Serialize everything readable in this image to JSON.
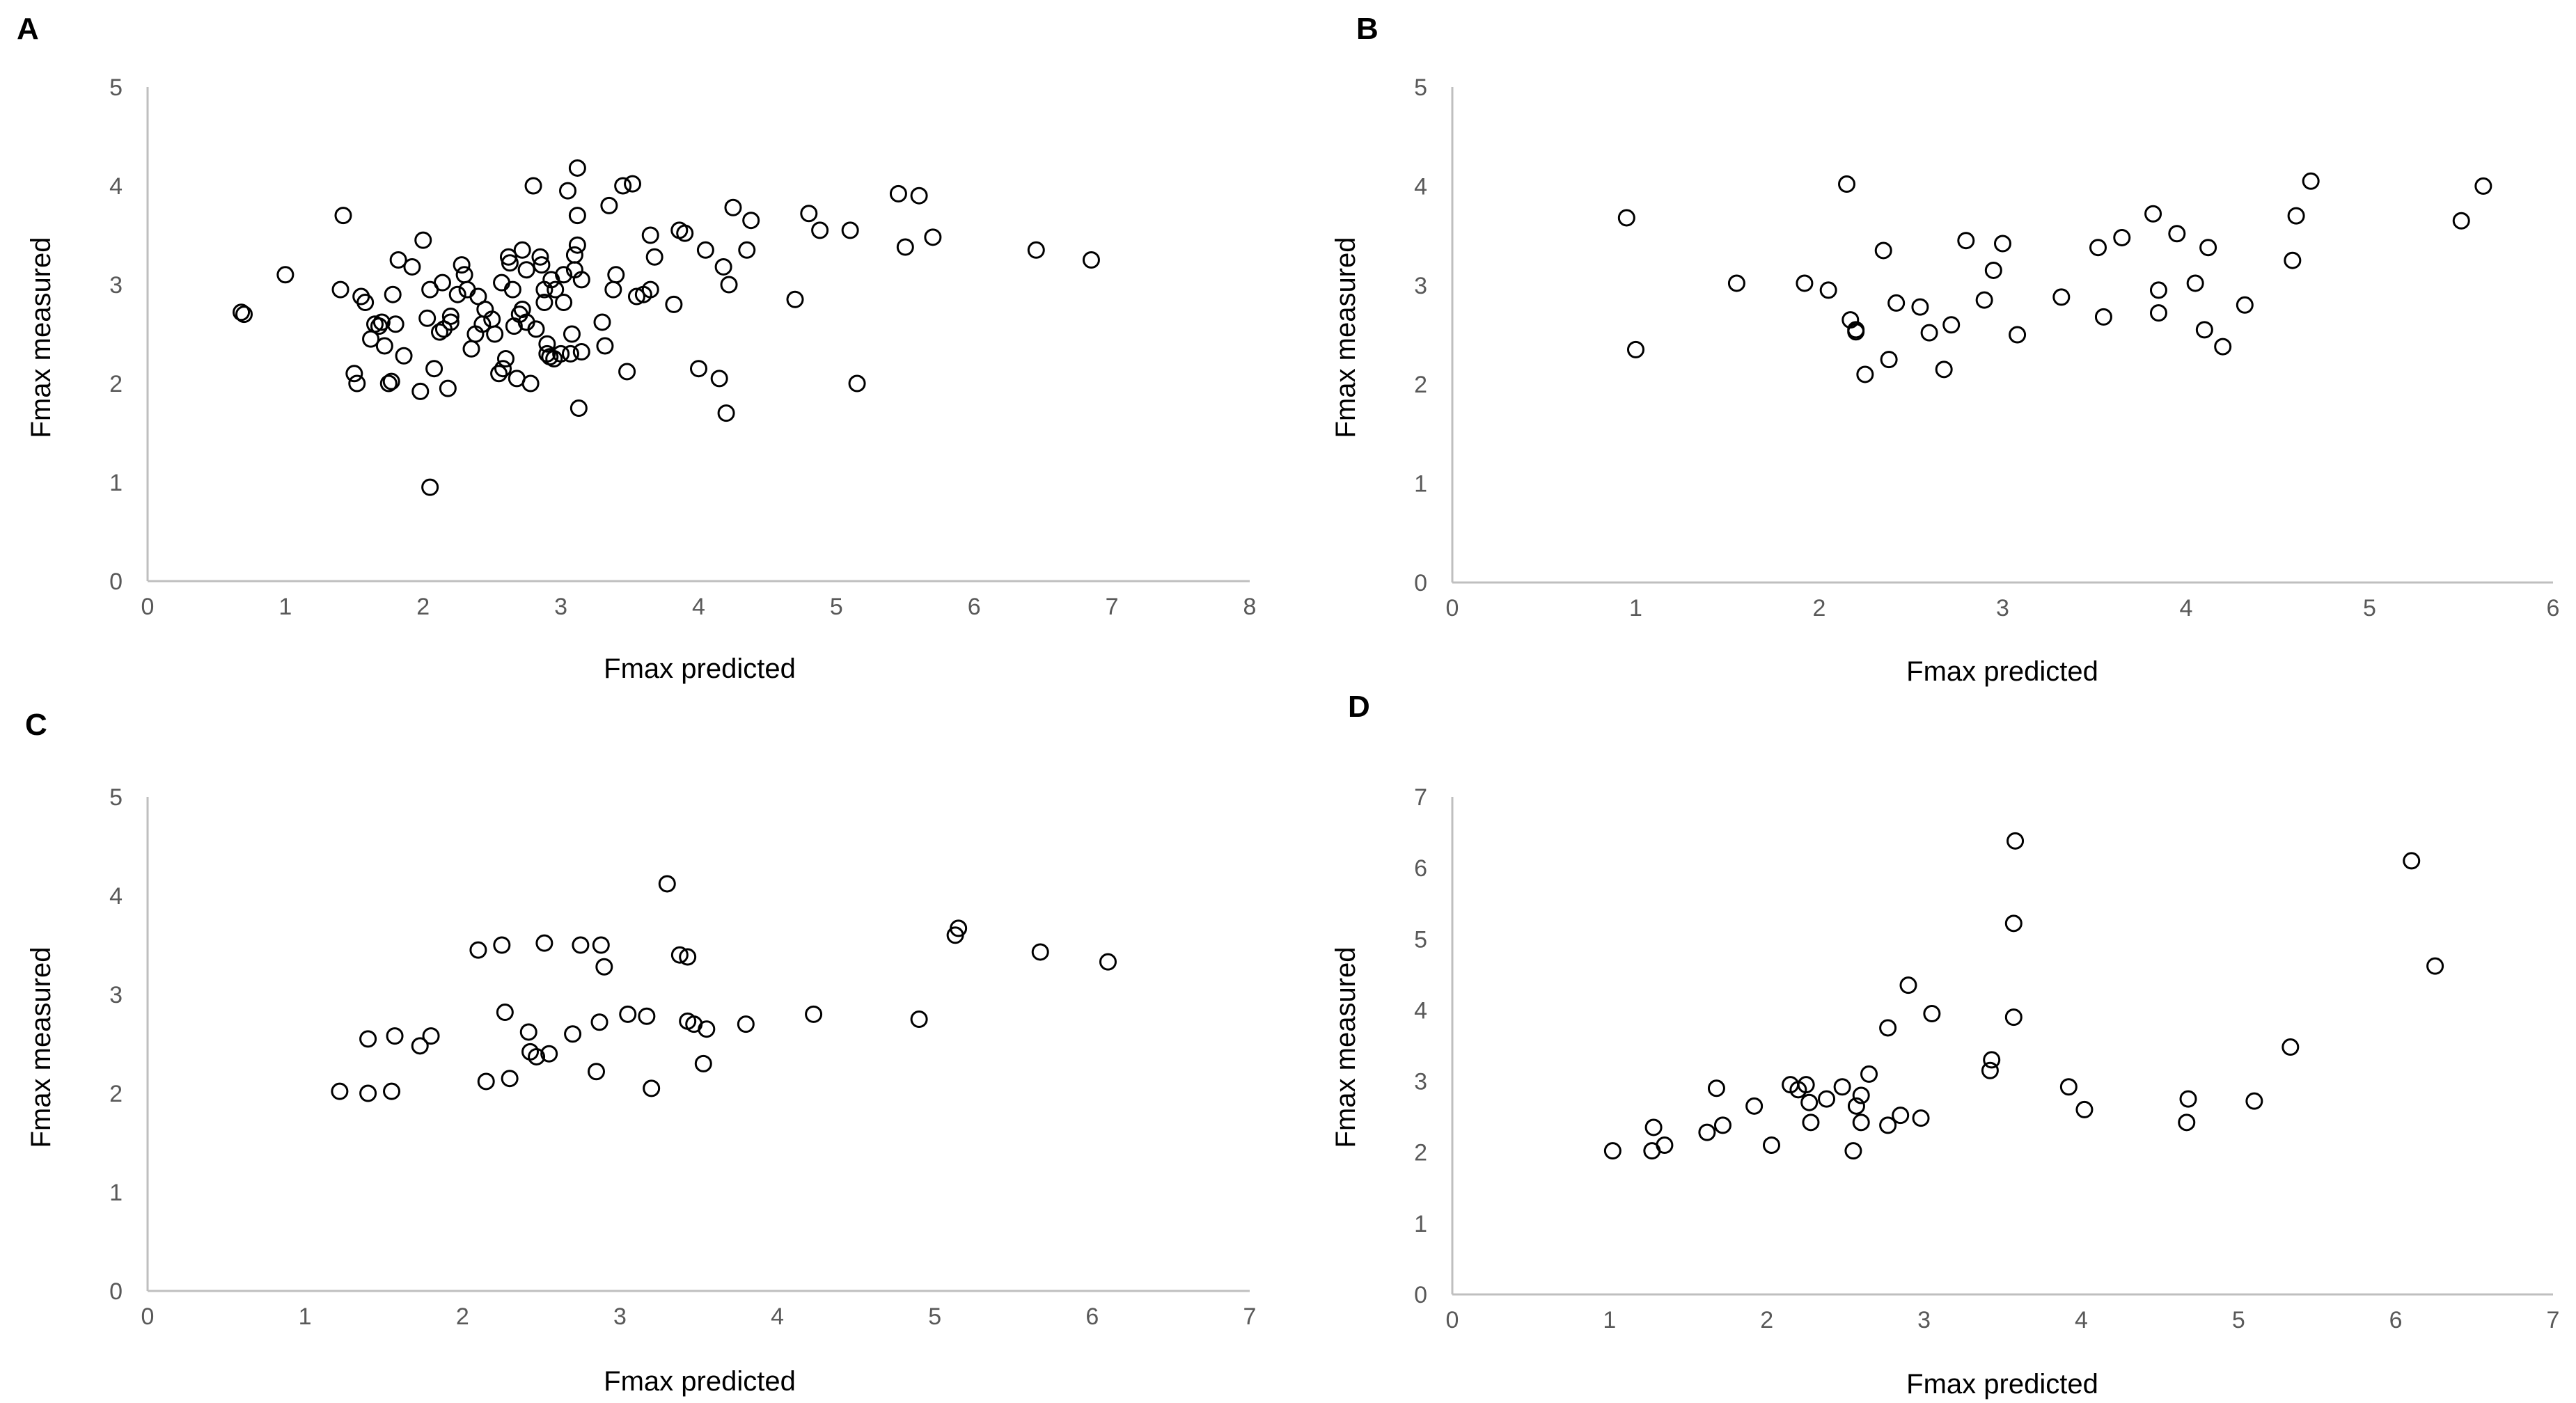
{
  "chart_data": [
    {
      "type": "scatter",
      "panel_label": "A",
      "xlabel": "Fmax predicted",
      "ylabel": "Fmax measured",
      "xlim": [
        0,
        8
      ],
      "ylim": [
        0,
        5
      ],
      "xticks": [
        "0",
        "1",
        "2",
        "3",
        "4",
        "5",
        "6",
        "7",
        "8"
      ],
      "yticks": [
        "0",
        "1",
        "2",
        "3",
        "4",
        "5"
      ],
      "grid": false,
      "series": [
        {
          "name": "A",
          "points": [
            [
              0.68,
              2.72
            ],
            [
              0.7,
              2.7
            ],
            [
              1.0,
              3.1
            ],
            [
              1.4,
              2.95
            ],
            [
              1.42,
              3.7
            ],
            [
              1.5,
              2.1
            ],
            [
              1.52,
              2.0
            ],
            [
              1.55,
              2.88
            ],
            [
              1.58,
              2.82
            ],
            [
              1.62,
              2.45
            ],
            [
              1.65,
              2.6
            ],
            [
              1.68,
              2.58
            ],
            [
              1.7,
              2.62
            ],
            [
              1.72,
              2.38
            ],
            [
              1.75,
              2.0
            ],
            [
              1.77,
              2.02
            ],
            [
              1.78,
              2.9
            ],
            [
              1.8,
              2.6
            ],
            [
              1.82,
              3.25
            ],
            [
              1.86,
              2.28
            ],
            [
              1.92,
              3.18
            ],
            [
              1.98,
              1.92
            ],
            [
              2.0,
              3.45
            ],
            [
              2.03,
              2.66
            ],
            [
              2.05,
              2.95
            ],
            [
              2.05,
              0.95
            ],
            [
              2.08,
              2.15
            ],
            [
              2.12,
              2.52
            ],
            [
              2.14,
              3.02
            ],
            [
              2.15,
              2.55
            ],
            [
              2.18,
              1.95
            ],
            [
              2.2,
              2.68
            ],
            [
              2.2,
              2.62
            ],
            [
              2.25,
              2.9
            ],
            [
              2.28,
              3.2
            ],
            [
              2.3,
              3.1
            ],
            [
              2.32,
              2.95
            ],
            [
              2.35,
              2.35
            ],
            [
              2.38,
              2.5
            ],
            [
              2.4,
              2.88
            ],
            [
              2.43,
              2.6
            ],
            [
              2.45,
              2.75
            ],
            [
              2.5,
              2.65
            ],
            [
              2.52,
              2.5
            ],
            [
              2.55,
              2.1
            ],
            [
              2.57,
              3.02
            ],
            [
              2.58,
              2.15
            ],
            [
              2.6,
              2.25
            ],
            [
              2.62,
              3.28
            ],
            [
              2.63,
              3.22
            ],
            [
              2.65,
              2.95
            ],
            [
              2.66,
              2.58
            ],
            [
              2.68,
              2.05
            ],
            [
              2.7,
              2.7
            ],
            [
              2.72,
              3.35
            ],
            [
              2.72,
              2.75
            ],
            [
              2.75,
              2.62
            ],
            [
              2.75,
              3.15
            ],
            [
              2.78,
              2.0
            ],
            [
              2.8,
              4.0
            ],
            [
              2.82,
              2.55
            ],
            [
              2.85,
              3.28
            ],
            [
              2.86,
              3.2
            ],
            [
              2.88,
              2.95
            ],
            [
              2.88,
              2.82
            ],
            [
              2.9,
              2.3
            ],
            [
              2.9,
              2.4
            ],
            [
              2.92,
              2.27
            ],
            [
              2.93,
              3.05
            ],
            [
              2.95,
              2.25
            ],
            [
              2.96,
              2.95
            ],
            [
              3.0,
              2.3
            ],
            [
              3.02,
              2.82
            ],
            [
              3.02,
              3.1
            ],
            [
              3.05,
              3.95
            ],
            [
              3.07,
              2.3
            ],
            [
              3.08,
              2.5
            ],
            [
              3.1,
              3.3
            ],
            [
              3.1,
              3.15
            ],
            [
              3.12,
              4.18
            ],
            [
              3.12,
              3.4
            ],
            [
              3.12,
              3.7
            ],
            [
              3.13,
              1.75
            ],
            [
              3.15,
              2.32
            ],
            [
              3.15,
              3.05
            ],
            [
              3.3,
              2.62
            ],
            [
              3.32,
              2.38
            ],
            [
              3.35,
              3.8
            ],
            [
              3.38,
              2.95
            ],
            [
              3.4,
              3.1
            ],
            [
              3.45,
              4.0
            ],
            [
              3.48,
              2.12
            ],
            [
              3.52,
              4.02
            ],
            [
              3.55,
              2.88
            ],
            [
              3.6,
              2.9
            ],
            [
              3.65,
              3.5
            ],
            [
              3.65,
              2.95
            ],
            [
              3.68,
              3.28
            ],
            [
              3.82,
              2.8
            ],
            [
              3.86,
              3.55
            ],
            [
              3.9,
              3.52
            ],
            [
              4.0,
              2.15
            ],
            [
              4.05,
              3.35
            ],
            [
              4.15,
              2.05
            ],
            [
              4.18,
              3.18
            ],
            [
              4.2,
              1.7
            ],
            [
              4.22,
              3.0
            ],
            [
              4.25,
              3.78
            ],
            [
              4.35,
              3.35
            ],
            [
              4.38,
              3.65
            ],
            [
              4.7,
              2.85
            ],
            [
              4.8,
              3.72
            ],
            [
              4.88,
              3.55
            ],
            [
              5.1,
              3.55
            ],
            [
              5.15,
              2.0
            ],
            [
              5.45,
              3.92
            ],
            [
              5.5,
              3.38
            ],
            [
              5.6,
              3.9
            ],
            [
              5.7,
              3.48
            ],
            [
              6.45,
              3.35
            ],
            [
              6.85,
              3.25
            ]
          ]
        }
      ]
    },
    {
      "type": "scatter",
      "panel_label": "B",
      "xlabel": "Fmax predicted",
      "ylabel": "Fmax measured",
      "xlim": [
        0,
        6
      ],
      "ylim": [
        0,
        5
      ],
      "xticks": [
        "0",
        "1",
        "2",
        "3",
        "4",
        "5",
        "6"
      ],
      "yticks": [
        "0",
        "1",
        "2",
        "3",
        "4",
        "5"
      ],
      "grid": false,
      "series": [
        {
          "name": "B",
          "points": [
            [
              0.95,
              3.68
            ],
            [
              1.0,
              2.35
            ],
            [
              1.55,
              3.02
            ],
            [
              1.92,
              3.02
            ],
            [
              2.05,
              2.95
            ],
            [
              2.15,
              4.02
            ],
            [
              2.17,
              2.65
            ],
            [
              2.2,
              2.55
            ],
            [
              2.2,
              2.53
            ],
            [
              2.25,
              2.1
            ],
            [
              2.35,
              3.35
            ],
            [
              2.38,
              2.25
            ],
            [
              2.42,
              2.82
            ],
            [
              2.55,
              2.78
            ],
            [
              2.6,
              2.52
            ],
            [
              2.68,
              2.15
            ],
            [
              2.72,
              2.6
            ],
            [
              2.8,
              3.45
            ],
            [
              2.9,
              2.85
            ],
            [
              2.95,
              3.15
            ],
            [
              3.0,
              3.42
            ],
            [
              3.08,
              2.5
            ],
            [
              3.32,
              2.88
            ],
            [
              3.52,
              3.38
            ],
            [
              3.55,
              2.68
            ],
            [
              3.65,
              3.48
            ],
            [
              3.82,
              3.72
            ],
            [
              3.85,
              2.95
            ],
            [
              3.85,
              2.72
            ],
            [
              3.95,
              3.52
            ],
            [
              4.05,
              3.02
            ],
            [
              4.1,
              2.55
            ],
            [
              4.12,
              3.38
            ],
            [
              4.2,
              2.38
            ],
            [
              4.32,
              2.8
            ],
            [
              4.58,
              3.25
            ],
            [
              4.6,
              3.7
            ],
            [
              4.68,
              4.05
            ],
            [
              5.5,
              3.65
            ],
            [
              5.62,
              4.0
            ]
          ]
        }
      ]
    },
    {
      "type": "scatter",
      "panel_label": "C",
      "xlabel": "Fmax predicted",
      "ylabel": "Fmax measured",
      "xlim": [
        0,
        7
      ],
      "ylim": [
        0,
        5
      ],
      "xticks": [
        "0",
        "1",
        "2",
        "3",
        "4",
        "5",
        "6",
        "7"
      ],
      "yticks": [
        "0",
        "1",
        "2",
        "3",
        "4",
        "5"
      ],
      "grid": false,
      "series": [
        {
          "name": "C",
          "points": [
            [
              1.22,
              2.02
            ],
            [
              1.4,
              2.0
            ],
            [
              1.4,
              2.55
            ],
            [
              1.55,
              2.02
            ],
            [
              1.57,
              2.58
            ],
            [
              1.73,
              2.48
            ],
            [
              1.8,
              2.58
            ],
            [
              2.1,
              3.45
            ],
            [
              2.15,
              2.12
            ],
            [
              2.25,
              3.5
            ],
            [
              2.27,
              2.82
            ],
            [
              2.3,
              2.15
            ],
            [
              2.42,
              2.62
            ],
            [
              2.43,
              2.42
            ],
            [
              2.47,
              2.37
            ],
            [
              2.52,
              3.52
            ],
            [
              2.55,
              2.4
            ],
            [
              2.7,
              2.6
            ],
            [
              2.75,
              3.5
            ],
            [
              2.85,
              2.22
            ],
            [
              2.87,
              2.72
            ],
            [
              2.88,
              3.5
            ],
            [
              2.9,
              3.28
            ],
            [
              3.05,
              2.8
            ],
            [
              3.17,
              2.78
            ],
            [
              3.2,
              2.05
            ],
            [
              3.3,
              4.12
            ],
            [
              3.38,
              3.4
            ],
            [
              3.43,
              3.38
            ],
            [
              3.43,
              2.73
            ],
            [
              3.47,
              2.7
            ],
            [
              3.53,
              2.3
            ],
            [
              3.55,
              2.65
            ],
            [
              3.8,
              2.7
            ],
            [
              4.23,
              2.8
            ],
            [
              4.9,
              2.75
            ],
            [
              5.13,
              3.6
            ],
            [
              5.15,
              3.67
            ],
            [
              5.67,
              3.43
            ],
            [
              6.1,
              3.33
            ]
          ]
        }
      ]
    },
    {
      "type": "scatter",
      "panel_label": "D",
      "xlabel": "Fmax predicted",
      "ylabel": "Fmax measured",
      "xlim": [
        0,
        7
      ],
      "ylim": [
        0,
        7
      ],
      "xticks": [
        "0",
        "1",
        "2",
        "3",
        "4",
        "5",
        "6",
        "7"
      ],
      "yticks": [
        "0",
        "1",
        "2",
        "3",
        "4",
        "5",
        "6",
        "7"
      ],
      "grid": false,
      "series": [
        {
          "name": "D",
          "points": [
            [
              1.02,
              2.02
            ],
            [
              1.27,
              2.02
            ],
            [
              1.28,
              2.35
            ],
            [
              1.35,
              2.1
            ],
            [
              1.62,
              2.28
            ],
            [
              1.68,
              2.9
            ],
            [
              1.72,
              2.38
            ],
            [
              1.92,
              2.65
            ],
            [
              2.03,
              2.1
            ],
            [
              2.15,
              2.95
            ],
            [
              2.2,
              2.88
            ],
            [
              2.25,
              2.95
            ],
            [
              2.27,
              2.7
            ],
            [
              2.28,
              2.42
            ],
            [
              2.38,
              2.75
            ],
            [
              2.48,
              2.92
            ],
            [
              2.55,
              2.02
            ],
            [
              2.57,
              2.65
            ],
            [
              2.6,
              2.8
            ],
            [
              2.6,
              2.42
            ],
            [
              2.65,
              3.1
            ],
            [
              2.77,
              3.75
            ],
            [
              2.77,
              2.38
            ],
            [
              2.85,
              2.52
            ],
            [
              2.9,
              4.35
            ],
            [
              2.98,
              2.48
            ],
            [
              3.05,
              3.95
            ],
            [
              3.42,
              3.15
            ],
            [
              3.43,
              3.3
            ],
            [
              3.57,
              5.22
            ],
            [
              3.58,
              6.38
            ],
            [
              3.57,
              3.9
            ],
            [
              3.92,
              2.92
            ],
            [
              4.02,
              2.6
            ],
            [
              4.67,
              2.42
            ],
            [
              4.68,
              2.75
            ],
            [
              5.1,
              2.72
            ],
            [
              5.33,
              3.48
            ],
            [
              6.1,
              6.1
            ],
            [
              6.25,
              4.62
            ]
          ]
        }
      ]
    }
  ]
}
